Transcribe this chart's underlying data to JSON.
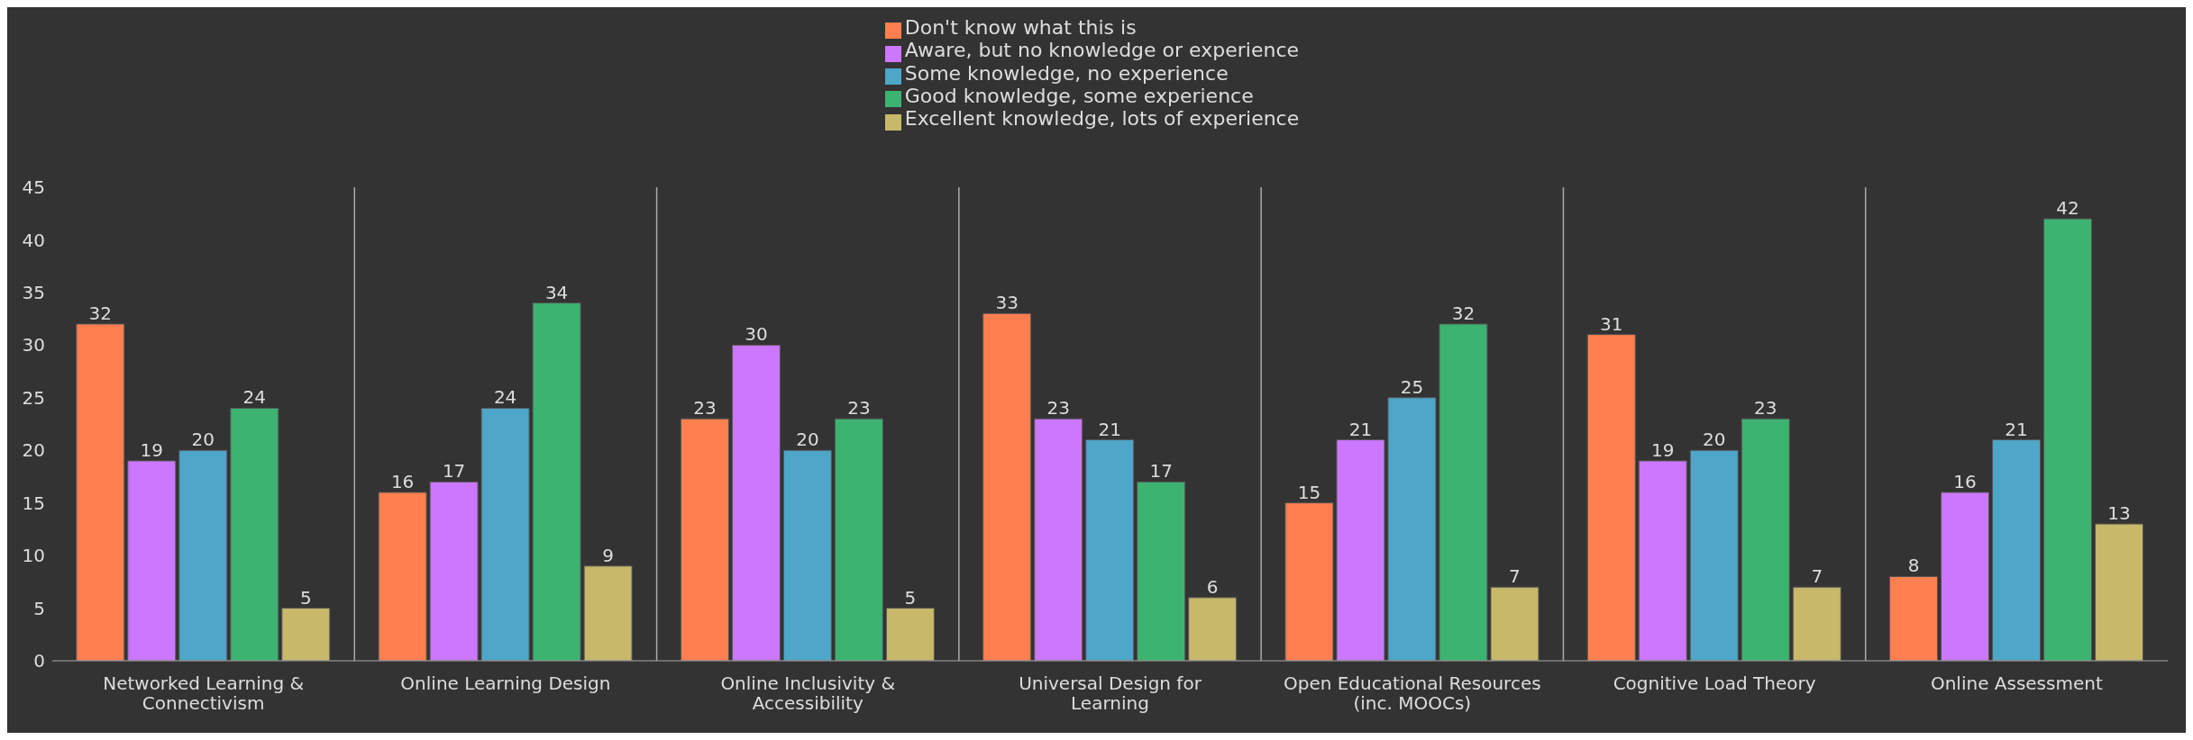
{
  "chart_data": {
    "type": "bar",
    "categories": [
      "Networked Learning & Connectivism",
      "Online Learning Design",
      "Online Inclusivity & Accessibility",
      "Universal Design for Learning",
      "Open Educational Resources (inc. MOOCs)",
      "Cognitive Load Theory",
      "Online Assessment"
    ],
    "series": [
      {
        "name": "Don't know what this is",
        "color": "#ff7f50",
        "values": [
          32,
          16,
          23,
          33,
          15,
          31,
          8
        ]
      },
      {
        "name": "Aware, but no knowledge or experience",
        "color": "#cc77ff",
        "values": [
          19,
          17,
          30,
          23,
          21,
          19,
          16
        ]
      },
      {
        "name": "Some knowledge, no experience",
        "color": "#4ea6c9",
        "values": [
          20,
          24,
          20,
          21,
          25,
          20,
          21
        ]
      },
      {
        "name": "Good knowledge, some experience",
        "color": "#3cb371",
        "values": [
          24,
          34,
          23,
          17,
          32,
          23,
          42
        ]
      },
      {
        "name": "Excellent knowledge, lots of experience",
        "color": "#c8b86a",
        "values": [
          5,
          9,
          5,
          6,
          7,
          7,
          13
        ]
      }
    ],
    "ylim": [
      0,
      45
    ],
    "yticks": [
      0,
      5,
      10,
      15,
      20,
      25,
      30,
      35,
      40,
      45
    ],
    "grid": "x",
    "legend": "top",
    "data_labels": true
  }
}
